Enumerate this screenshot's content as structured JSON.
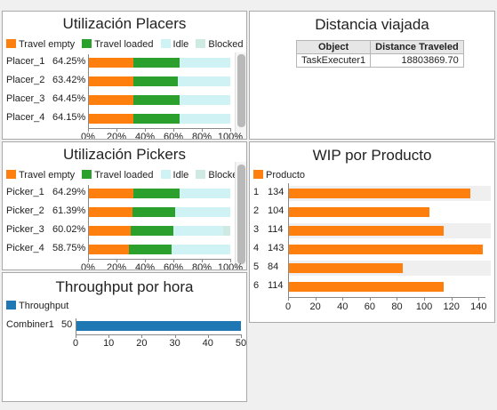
{
  "colors": {
    "travel_empty": "#ff7f0e",
    "travel_loaded": "#2ca02c",
    "idle": "#cff3f5",
    "blocked": "#cfe9e3",
    "wip": "#ff7f0e",
    "throughput": "#1f77b4"
  },
  "placers": {
    "title": "Utilización Placers",
    "legend": [
      "Travel empty",
      "Travel loaded",
      "Idle",
      "Blocked"
    ],
    "rows": [
      {
        "label": "Placer_1",
        "pct": "64.25%",
        "travel_empty": 32,
        "travel_loaded": 32.25,
        "idle": 35.75,
        "blocked": 0
      },
      {
        "label": "Placer_2",
        "pct": "63.42%",
        "travel_empty": 32,
        "travel_loaded": 31.42,
        "idle": 36.58,
        "blocked": 0
      },
      {
        "label": "Placer_3",
        "pct": "64.45%",
        "travel_empty": 32,
        "travel_loaded": 32.45,
        "idle": 35.55,
        "blocked": 0
      },
      {
        "label": "Placer_4",
        "pct": "64.15%",
        "travel_empty": 32,
        "travel_loaded": 32.15,
        "idle": 35.85,
        "blocked": 0
      }
    ],
    "ticks": [
      "0%",
      "20%",
      "40%",
      "60%",
      "80%",
      "100%"
    ]
  },
  "distance": {
    "title": "Distancia viajada",
    "headers": [
      "Object",
      "Distance Traveled"
    ],
    "rows": [
      [
        "TaskExecuter1",
        "18803869.70"
      ]
    ]
  },
  "pickers": {
    "title": "Utilización Pickers",
    "legend": [
      "Travel empty",
      "Travel loaded",
      "Idle",
      "Blocked"
    ],
    "rows": [
      {
        "label": "Picker_1",
        "pct": "64.29%",
        "travel_empty": 32,
        "travel_loaded": 32.29,
        "idle": 35.71,
        "blocked": 0
      },
      {
        "label": "Picker_2",
        "pct": "61.39%",
        "travel_empty": 31,
        "travel_loaded": 30.39,
        "idle": 38.61,
        "blocked": 0
      },
      {
        "label": "Picker_3",
        "pct": "60.02%",
        "travel_empty": 30,
        "travel_loaded": 30.02,
        "idle": 34.98,
        "blocked": 5
      },
      {
        "label": "Picker_4",
        "pct": "58.75%",
        "travel_empty": 29,
        "travel_loaded": 29.75,
        "idle": 41.25,
        "blocked": 0
      }
    ],
    "ticks": [
      "0%",
      "20%",
      "40%",
      "60%",
      "80%",
      "100%"
    ]
  },
  "wip": {
    "title": "WIP por Producto",
    "legend": [
      "Producto"
    ],
    "rows": [
      {
        "label": "1",
        "value": 134
      },
      {
        "label": "2",
        "value": 104
      },
      {
        "label": "3",
        "value": 114
      },
      {
        "label": "4",
        "value": 143
      },
      {
        "label": "5",
        "value": 84
      },
      {
        "label": "6",
        "value": 114
      }
    ],
    "max": 145,
    "ticks": [
      "0",
      "20",
      "40",
      "60",
      "80",
      "100",
      "120",
      "140"
    ]
  },
  "throughput": {
    "title": "Throughput por hora",
    "legend": [
      "Throughput"
    ],
    "rows": [
      {
        "label": "Combiner1",
        "value": 50
      }
    ],
    "max": 50,
    "ticks": [
      "0",
      "10",
      "20",
      "30",
      "40",
      "50"
    ]
  },
  "chart_data": [
    {
      "type": "bar",
      "title": "Utilización Placers",
      "categories": [
        "Placer_1",
        "Placer_2",
        "Placer_3",
        "Placer_4"
      ],
      "series": [
        {
          "name": "Travel empty",
          "values": [
            32,
            32,
            32,
            32
          ]
        },
        {
          "name": "Travel loaded",
          "values": [
            32.25,
            31.42,
            32.45,
            32.15
          ]
        },
        {
          "name": "Idle",
          "values": [
            35.75,
            36.58,
            35.55,
            35.85
          ]
        },
        {
          "name": "Blocked",
          "values": [
            0,
            0,
            0,
            0
          ]
        }
      ],
      "xlim": [
        0,
        100
      ],
      "legend": "top"
    },
    {
      "type": "bar",
      "title": "Utilización Pickers",
      "categories": [
        "Picker_1",
        "Picker_2",
        "Picker_3",
        "Picker_4"
      ],
      "series": [
        {
          "name": "Travel empty",
          "values": [
            32,
            31,
            30,
            29
          ]
        },
        {
          "name": "Travel loaded",
          "values": [
            32.29,
            30.39,
            30.02,
            29.75
          ]
        },
        {
          "name": "Idle",
          "values": [
            35.71,
            38.61,
            34.98,
            41.25
          ]
        },
        {
          "name": "Blocked",
          "values": [
            0,
            0,
            5,
            0
          ]
        }
      ],
      "xlim": [
        0,
        100
      ],
      "legend": "top"
    },
    {
      "type": "bar",
      "title": "WIP por Producto",
      "categories": [
        "1",
        "2",
        "3",
        "4",
        "5",
        "6"
      ],
      "series": [
        {
          "name": "Producto",
          "values": [
            134,
            104,
            114,
            143,
            84,
            114
          ]
        }
      ],
      "xlim": [
        0,
        145
      ],
      "legend": "top"
    },
    {
      "type": "bar",
      "title": "Throughput por hora",
      "categories": [
        "Combiner1"
      ],
      "series": [
        {
          "name": "Throughput",
          "values": [
            50
          ]
        }
      ],
      "xlim": [
        0,
        50
      ],
      "legend": "top"
    },
    {
      "type": "table",
      "title": "Distancia viajada",
      "columns": [
        "Object",
        "Distance Traveled"
      ],
      "rows": [
        [
          "TaskExecuter1",
          "18803869.70"
        ]
      ]
    }
  ]
}
